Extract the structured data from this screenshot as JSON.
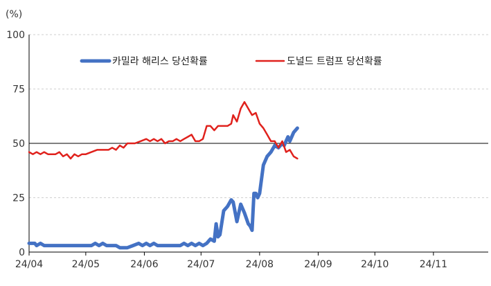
{
  "chart_data": {
    "type": "line",
    "ylabel": "(%)",
    "ylim": [
      0,
      100
    ],
    "yticks": [
      0,
      25,
      50,
      75,
      100
    ],
    "xlim": [
      "2024-04-01",
      "2024-11-30"
    ],
    "xticks": [
      {
        "date": "2024-04-01",
        "label": "24/04"
      },
      {
        "date": "2024-05-01",
        "label": "24/05"
      },
      {
        "date": "2024-06-01",
        "label": "24/06"
      },
      {
        "date": "2024-07-01",
        "label": "24/07"
      },
      {
        "date": "2024-08-01",
        "label": "24/08"
      },
      {
        "date": "2024-09-01",
        "label": "24/09"
      },
      {
        "date": "2024-10-01",
        "label": "24/10"
      },
      {
        "date": "2024-11-01",
        "label": "24/11"
      }
    ],
    "grid": true,
    "reference_line": 50,
    "legend_placement": "top",
    "series": [
      {
        "name": "카밀라 해리스 당선확률",
        "color": "#4472C4",
        "points": [
          [
            "2024-04-01",
            4
          ],
          [
            "2024-04-04",
            4
          ],
          [
            "2024-04-05",
            3
          ],
          [
            "2024-04-07",
            4
          ],
          [
            "2024-04-09",
            3
          ],
          [
            "2024-04-15",
            3
          ],
          [
            "2024-04-20",
            3
          ],
          [
            "2024-04-25",
            3
          ],
          [
            "2024-04-30",
            3
          ],
          [
            "2024-05-04",
            3
          ],
          [
            "2024-05-06",
            4
          ],
          [
            "2024-05-08",
            3
          ],
          [
            "2024-05-10",
            4
          ],
          [
            "2024-05-12",
            3
          ],
          [
            "2024-05-14",
            3
          ],
          [
            "2024-05-17",
            3
          ],
          [
            "2024-05-19",
            2
          ],
          [
            "2024-05-23",
            2
          ],
          [
            "2024-05-26",
            3
          ],
          [
            "2024-05-29",
            4
          ],
          [
            "2024-05-31",
            3
          ],
          [
            "2024-06-02",
            4
          ],
          [
            "2024-06-04",
            3
          ],
          [
            "2024-06-06",
            4
          ],
          [
            "2024-06-08",
            3
          ],
          [
            "2024-06-10",
            3
          ],
          [
            "2024-06-15",
            3
          ],
          [
            "2024-06-20",
            3
          ],
          [
            "2024-06-22",
            4
          ],
          [
            "2024-06-24",
            3
          ],
          [
            "2024-06-26",
            4
          ],
          [
            "2024-06-28",
            3
          ],
          [
            "2024-06-30",
            4
          ],
          [
            "2024-07-02",
            3
          ],
          [
            "2024-07-04",
            4
          ],
          [
            "2024-07-06",
            6
          ],
          [
            "2024-07-08",
            5
          ],
          [
            "2024-07-09",
            13
          ],
          [
            "2024-07-10",
            7
          ],
          [
            "2024-07-11",
            8
          ],
          [
            "2024-07-13",
            19
          ],
          [
            "2024-07-15",
            21
          ],
          [
            "2024-07-17",
            24
          ],
          [
            "2024-07-18",
            23
          ],
          [
            "2024-07-20",
            14
          ],
          [
            "2024-07-22",
            22
          ],
          [
            "2024-07-24",
            18
          ],
          [
            "2024-07-26",
            13
          ],
          [
            "2024-07-27",
            12
          ],
          [
            "2024-07-28",
            10
          ],
          [
            "2024-07-29",
            27
          ],
          [
            "2024-07-30",
            27
          ],
          [
            "2024-07-31",
            25
          ],
          [
            "2024-08-01",
            27
          ],
          [
            "2024-08-03",
            40
          ],
          [
            "2024-08-05",
            44
          ],
          [
            "2024-08-07",
            46
          ],
          [
            "2024-08-09",
            49
          ],
          [
            "2024-08-11",
            48
          ],
          [
            "2024-08-13",
            50
          ],
          [
            "2024-08-14",
            49
          ],
          [
            "2024-08-16",
            53
          ],
          [
            "2024-08-17",
            51
          ],
          [
            "2024-08-19",
            55
          ],
          [
            "2024-08-21",
            57
          ]
        ]
      },
      {
        "name": "도널드 트럼프 당선확률",
        "color": "#E0211C",
        "points": [
          [
            "2024-04-01",
            46
          ],
          [
            "2024-04-03",
            45
          ],
          [
            "2024-04-05",
            46
          ],
          [
            "2024-04-07",
            45
          ],
          [
            "2024-04-09",
            46
          ],
          [
            "2024-04-11",
            45
          ],
          [
            "2024-04-15",
            45
          ],
          [
            "2024-04-17",
            46
          ],
          [
            "2024-04-19",
            44
          ],
          [
            "2024-04-21",
            45
          ],
          [
            "2024-04-23",
            43
          ],
          [
            "2024-04-25",
            45
          ],
          [
            "2024-04-27",
            44
          ],
          [
            "2024-04-29",
            45
          ],
          [
            "2024-05-01",
            45
          ],
          [
            "2024-05-04",
            46
          ],
          [
            "2024-05-07",
            47
          ],
          [
            "2024-05-10",
            47
          ],
          [
            "2024-05-13",
            47
          ],
          [
            "2024-05-15",
            48
          ],
          [
            "2024-05-17",
            47
          ],
          [
            "2024-05-19",
            49
          ],
          [
            "2024-05-21",
            48
          ],
          [
            "2024-05-23",
            50
          ],
          [
            "2024-05-27",
            50
          ],
          [
            "2024-05-30",
            51
          ],
          [
            "2024-06-02",
            52
          ],
          [
            "2024-06-04",
            51
          ],
          [
            "2024-06-06",
            52
          ],
          [
            "2024-06-08",
            51
          ],
          [
            "2024-06-10",
            52
          ],
          [
            "2024-06-12",
            50
          ],
          [
            "2024-06-14",
            51
          ],
          [
            "2024-06-16",
            51
          ],
          [
            "2024-06-18",
            52
          ],
          [
            "2024-06-20",
            51
          ],
          [
            "2024-06-22",
            52
          ],
          [
            "2024-06-24",
            53
          ],
          [
            "2024-06-26",
            54
          ],
          [
            "2024-06-28",
            51
          ],
          [
            "2024-06-30",
            51
          ],
          [
            "2024-07-02",
            52
          ],
          [
            "2024-07-04",
            58
          ],
          [
            "2024-07-06",
            58
          ],
          [
            "2024-07-08",
            56
          ],
          [
            "2024-07-10",
            58
          ],
          [
            "2024-07-12",
            58
          ],
          [
            "2024-07-15",
            58
          ],
          [
            "2024-07-17",
            59
          ],
          [
            "2024-07-18",
            63
          ],
          [
            "2024-07-20",
            60
          ],
          [
            "2024-07-22",
            66
          ],
          [
            "2024-07-24",
            69
          ],
          [
            "2024-07-26",
            66
          ],
          [
            "2024-07-28",
            63
          ],
          [
            "2024-07-30",
            64
          ],
          [
            "2024-08-01",
            59
          ],
          [
            "2024-08-03",
            57
          ],
          [
            "2024-08-05",
            54
          ],
          [
            "2024-08-07",
            51
          ],
          [
            "2024-08-09",
            51
          ],
          [
            "2024-08-11",
            48
          ],
          [
            "2024-08-13",
            51
          ],
          [
            "2024-08-15",
            46
          ],
          [
            "2024-08-17",
            47
          ],
          [
            "2024-08-19",
            44
          ],
          [
            "2024-08-21",
            43
          ]
        ]
      }
    ]
  }
}
